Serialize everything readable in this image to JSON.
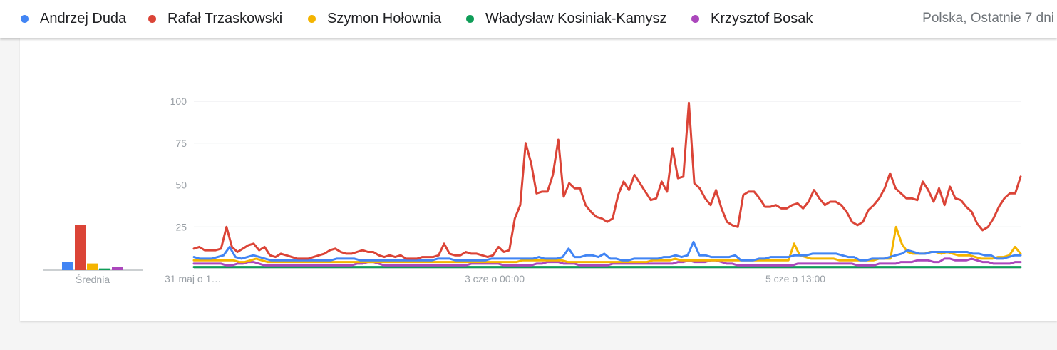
{
  "legend": {
    "region_label": "Polska, Ostatnie 7 dni"
  },
  "chart_data": {
    "type": "line",
    "ylim": [
      0,
      100
    ],
    "yticks": [
      "100",
      "75",
      "50",
      "25"
    ],
    "xtick_labels": [
      "31 maj o 1…",
      "3 cze o 00:00",
      "5 cze o 13:00"
    ],
    "average_label": "Średnia",
    "grid": true,
    "legend_position": "top",
    "series": [
      {
        "name": "Andrzej Duda",
        "color": "#4285f4",
        "average": 5,
        "values": [
          7,
          6,
          6,
          6,
          7,
          8,
          13,
          7,
          6,
          7,
          8,
          7,
          6,
          5,
          5,
          5,
          5,
          5,
          5,
          5,
          5,
          5,
          5,
          5,
          6,
          6,
          6,
          6,
          5,
          5,
          5,
          5,
          5,
          5,
          5,
          5,
          5,
          5,
          5,
          5,
          5,
          6,
          6,
          6,
          5,
          5,
          5,
          5,
          5,
          5,
          6,
          6,
          6,
          6,
          6,
          6,
          6,
          6,
          7,
          6,
          6,
          6,
          7,
          12,
          7,
          7,
          8,
          8,
          7,
          9,
          6,
          6,
          5,
          5,
          6,
          6,
          6,
          6,
          6,
          7,
          7,
          8,
          7,
          8,
          16,
          8,
          8,
          7,
          7,
          7,
          7,
          8,
          5,
          5,
          5,
          6,
          6,
          7,
          7,
          7,
          7,
          8,
          8,
          8,
          9,
          9,
          9,
          9,
          9,
          8,
          7,
          7,
          5,
          5,
          6,
          6,
          6,
          7,
          8,
          9,
          11,
          10,
          9,
          9,
          10,
          10,
          10,
          10,
          10,
          10,
          10,
          9,
          9,
          8,
          8,
          6,
          6,
          7,
          8,
          8
        ]
      },
      {
        "name": "Rafał Trzaskowski",
        "color": "#db4437",
        "average": 27,
        "values": [
          12,
          13,
          11,
          11,
          11,
          12,
          25,
          13,
          10,
          12,
          14,
          15,
          11,
          13,
          8,
          7,
          9,
          8,
          7,
          6,
          6,
          6,
          7,
          8,
          9,
          11,
          12,
          10,
          9,
          9,
          10,
          11,
          10,
          10,
          8,
          7,
          8,
          7,
          8,
          6,
          6,
          6,
          7,
          7,
          7,
          8,
          15,
          9,
          8,
          8,
          10,
          9,
          9,
          8,
          7,
          8,
          13,
          10,
          11,
          30,
          38,
          75,
          63,
          45,
          46,
          46,
          56,
          77,
          43,
          51,
          48,
          48,
          38,
          34,
          31,
          30,
          28,
          30,
          44,
          52,
          47,
          56,
          51,
          46,
          41,
          42,
          52,
          46,
          72,
          54,
          55,
          99,
          51,
          48,
          42,
          38,
          47,
          36,
          28,
          26,
          25,
          44,
          46,
          46,
          42,
          37,
          37,
          38,
          36,
          36,
          38,
          39,
          36,
          40,
          47,
          42,
          38,
          40,
          40,
          38,
          34,
          28,
          26,
          28,
          35,
          38,
          42,
          48,
          57,
          48,
          45,
          42,
          42,
          41,
          52,
          47,
          40,
          48,
          38,
          49,
          42,
          41,
          37,
          34,
          27,
          23,
          25,
          30,
          37,
          42,
          45,
          45,
          55
        ]
      },
      {
        "name": "Szymon Hołownia",
        "color": "#f4b400",
        "average": 4,
        "values": [
          5,
          5,
          5,
          5,
          5,
          5,
          5,
          5,
          4,
          4,
          5,
          6,
          5,
          4,
          4,
          4,
          4,
          4,
          4,
          4,
          4,
          4,
          4,
          4,
          4,
          4,
          4,
          4,
          4,
          4,
          4,
          4,
          4,
          4,
          4,
          4,
          4,
          4,
          4,
          4,
          4,
          4,
          4,
          4,
          4,
          4,
          4,
          4,
          4,
          4,
          4,
          4,
          4,
          4,
          4,
          4,
          4,
          4,
          5,
          5,
          5,
          5,
          5,
          5,
          5,
          5,
          4,
          4,
          4,
          4,
          4,
          4,
          4,
          4,
          4,
          4,
          4,
          4,
          4,
          4,
          4,
          5,
          5,
          5,
          5,
          6,
          5,
          5,
          5,
          5,
          5,
          5,
          5,
          5,
          5,
          5,
          5,
          5,
          5,
          5,
          5,
          5,
          5,
          5,
          5,
          5,
          15,
          8,
          7,
          6,
          6,
          6,
          6,
          6,
          5,
          5,
          5,
          5,
          5,
          5,
          5,
          6,
          6,
          6,
          25,
          15,
          10,
          9,
          9,
          9,
          10,
          10,
          9,
          10,
          9,
          8,
          8,
          8,
          7,
          6,
          6,
          6,
          7,
          7,
          8,
          13,
          9
        ]
      },
      {
        "name": "Władysław Kosiniak-Kamysz",
        "color": "#0f9d58",
        "average": 1,
        "values": [
          1,
          1,
          1,
          1,
          1,
          1,
          1,
          1,
          1,
          1,
          1,
          1,
          1,
          1,
          1,
          1,
          1,
          1,
          1,
          1,
          1,
          1,
          1,
          1,
          1,
          1,
          1,
          1,
          1,
          1,
          1,
          1,
          1,
          1,
          1,
          1,
          1,
          1,
          1,
          1,
          1,
          1,
          1,
          1,
          1,
          1,
          1,
          1,
          1,
          1,
          1,
          1,
          1,
          1,
          1,
          1,
          1,
          1,
          1,
          1,
          1,
          1,
          1,
          1,
          1,
          1,
          1,
          1,
          1,
          1,
          1,
          1,
          1,
          1,
          1,
          1,
          1,
          1,
          1,
          1,
          1,
          1,
          1,
          1,
          1,
          1,
          1,
          1,
          1,
          1,
          1,
          1,
          1,
          1,
          1,
          1,
          1,
          1,
          1,
          1,
          1,
          1,
          1,
          1,
          1,
          1,
          1,
          1,
          1,
          1,
          1,
          1,
          1,
          1,
          1,
          1,
          1,
          1,
          1,
          1,
          1,
          1,
          1,
          1,
          1,
          1,
          1,
          1,
          1,
          1,
          1,
          1,
          1,
          1,
          1,
          1,
          1,
          1,
          1,
          1,
          1,
          1,
          1,
          1,
          1,
          1,
          1,
          1,
          1,
          1
        ]
      },
      {
        "name": "Krzysztof Bosak",
        "color": "#ab47bc",
        "average": 2,
        "values": [
          3,
          3,
          3,
          3,
          3,
          3,
          2,
          2,
          3,
          3,
          4,
          4,
          3,
          2,
          2,
          2,
          2,
          2,
          2,
          2,
          2,
          2,
          2,
          2,
          2,
          2,
          2,
          2,
          2,
          2,
          3,
          3,
          4,
          4,
          3,
          2,
          2,
          2,
          2,
          2,
          2,
          2,
          2,
          2,
          2,
          2,
          2,
          2,
          2,
          2,
          2,
          3,
          3,
          3,
          3,
          3,
          3,
          2,
          2,
          2,
          2,
          2,
          2,
          3,
          3,
          4,
          4,
          4,
          3,
          3,
          3,
          2,
          2,
          2,
          2,
          2,
          2,
          3,
          3,
          3,
          3,
          3,
          3,
          3,
          3,
          3,
          3,
          3,
          3,
          4,
          4,
          5,
          4,
          4,
          4,
          5,
          5,
          4,
          3,
          3,
          2,
          2,
          2,
          2,
          2,
          2,
          2,
          2,
          2,
          2,
          2,
          3,
          3,
          3,
          3,
          3,
          3,
          3,
          3,
          3,
          3,
          3,
          2,
          2,
          2,
          2,
          3,
          3,
          3,
          3,
          4,
          4,
          4,
          5,
          5,
          5,
          4,
          4,
          6,
          6,
          5,
          5,
          5,
          6,
          5,
          4,
          4,
          3,
          3,
          3,
          3,
          4,
          4
        ]
      }
    ]
  }
}
